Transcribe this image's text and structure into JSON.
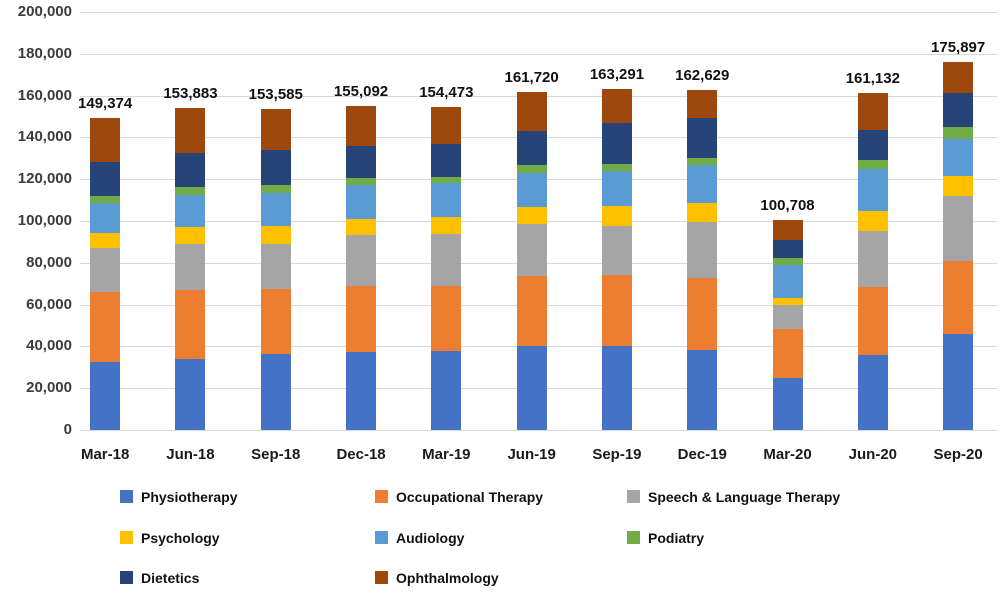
{
  "chart_data": {
    "type": "bar",
    "stacked": true,
    "title": "",
    "xlabel": "",
    "ylabel": "",
    "grid": true,
    "legend_position": "bottom",
    "ylim": [
      0,
      200000
    ],
    "yticks": [
      {
        "value": 0,
        "label": "0"
      },
      {
        "value": 20000,
        "label": "20,000"
      },
      {
        "value": 40000,
        "label": "40,000"
      },
      {
        "value": 60000,
        "label": "60,000"
      },
      {
        "value": 80000,
        "label": "80,000"
      },
      {
        "value": 100000,
        "label": "100,000"
      },
      {
        "value": 120000,
        "label": "120,000"
      },
      {
        "value": 140000,
        "label": "140,000"
      },
      {
        "value": 160000,
        "label": "160,000"
      },
      {
        "value": 180000,
        "label": "180,000"
      },
      {
        "value": 200000,
        "label": "200,000"
      }
    ],
    "categories": [
      "Mar-18",
      "Jun-18",
      "Sep-18",
      "Dec-18",
      "Mar-19",
      "Jun-19",
      "Sep-19",
      "Dec-19",
      "Mar-20",
      "Jun-20",
      "Sep-20"
    ],
    "totals": [
      149374,
      153883,
      153585,
      155092,
      154473,
      161720,
      163291,
      162629,
      100708,
      161132,
      175897
    ],
    "total_labels": [
      "149,374",
      "153,883",
      "153,585",
      "155,092",
      "154,473",
      "161,720",
      "163,291",
      "162,629",
      "100,708",
      "161,132",
      "175,897"
    ],
    "series": [
      {
        "name": "Physiotherapy",
        "color": "#4472C4",
        "values": [
          32500,
          33900,
          36300,
          37200,
          37800,
          40200,
          40300,
          38100,
          25000,
          35800,
          46000
        ]
      },
      {
        "name": "Occupational Therapy",
        "color": "#ED7D31",
        "values": [
          33300,
          33200,
          31400,
          31700,
          31100,
          33500,
          33800,
          34800,
          23200,
          32800,
          34900
        ]
      },
      {
        "name": "Speech & Language Therapy",
        "color": "#A5A5A5",
        "values": [
          21400,
          22000,
          21500,
          24300,
          24900,
          24900,
          23700,
          26800,
          11400,
          26400,
          31100
        ]
      },
      {
        "name": "Psychology",
        "color": "#FFC000",
        "values": [
          7100,
          8000,
          8300,
          7700,
          8300,
          8000,
          9200,
          9000,
          3700,
          9600,
          9400
        ]
      },
      {
        "name": "Audiology",
        "color": "#5B9BD5",
        "values": [
          14300,
          15500,
          15900,
          16300,
          16000,
          16600,
          16900,
          18300,
          15600,
          20500,
          17900
        ]
      },
      {
        "name": "Podiatry",
        "color": "#70AD47",
        "values": [
          3500,
          3700,
          3700,
          3200,
          2900,
          3700,
          3200,
          3400,
          3500,
          4200,
          5600
        ]
      },
      {
        "name": "Dietetics",
        "color": "#264478",
        "values": [
          16300,
          16300,
          17000,
          15700,
          15800,
          16000,
          19800,
          18700,
          8700,
          14200,
          16300
        ]
      },
      {
        "name": "Ophthalmology",
        "color": "#9E480E",
        "values": [
          20974,
          21283,
          19485,
          18992,
          17673,
          18820,
          16391,
          13529,
          9608,
          17632,
          14697
        ]
      }
    ]
  },
  "colors": {
    "gridline": "#d9d9d9",
    "tick_text": "#3b3b3b",
    "label_text": "#111111",
    "background": "#ffffff"
  }
}
